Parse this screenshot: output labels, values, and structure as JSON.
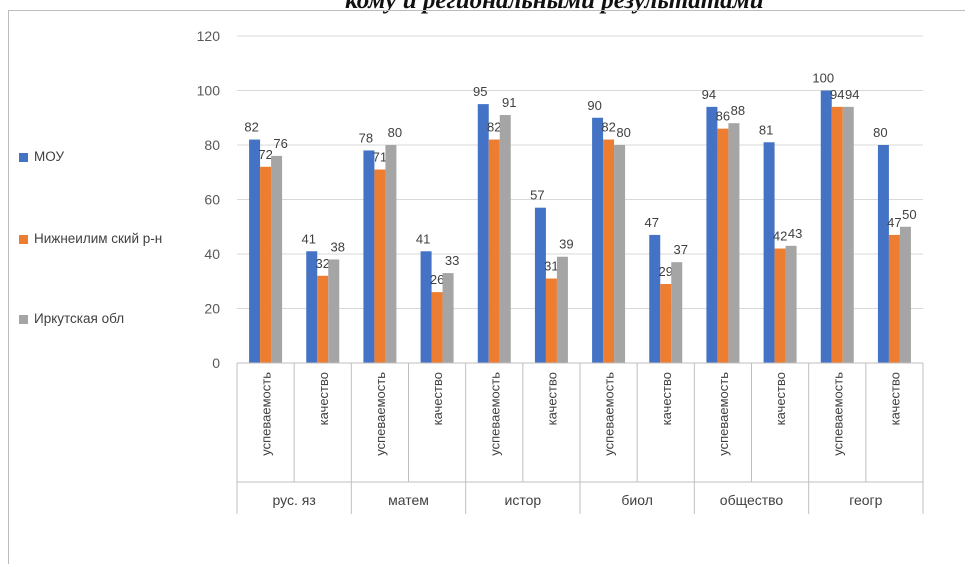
{
  "page": {
    "header_text": "кому и региональными результатами"
  },
  "chart_data": {
    "type": "bar",
    "title": "",
    "xlabel": "",
    "ylabel": "",
    "ylim": [
      0,
      120
    ],
    "yticks": [
      0,
      20,
      40,
      60,
      80,
      100,
      120
    ],
    "grid": "horizontal",
    "legend_position": "left",
    "groups": [
      {
        "label": "рус. яз",
        "categories": [
          "успеваемость",
          "качество"
        ]
      },
      {
        "label": "матем",
        "categories": [
          "успеваемость",
          "качество"
        ]
      },
      {
        "label": "истор",
        "categories": [
          "успеваемость",
          "качество"
        ]
      },
      {
        "label": "биол",
        "categories": [
          "успеваемость",
          "качество"
        ]
      },
      {
        "label": "общество",
        "categories": [
          "успеваемость",
          "качество"
        ]
      },
      {
        "label": "геогр",
        "categories": [
          "успеваемость",
          "качество"
        ]
      }
    ],
    "series": [
      {
        "name": "МОУ",
        "color": "#4472c4",
        "values": [
          82,
          41,
          78,
          41,
          95,
          57,
          90,
          47,
          94,
          81,
          100,
          80
        ]
      },
      {
        "name": "Нижнеилимский р-н",
        "color": "#ed7d31",
        "values": [
          72,
          32,
          71,
          26,
          82,
          31,
          82,
          29,
          86,
          42,
          94,
          47
        ]
      },
      {
        "name": "Иркутская обл",
        "color": "#a5a5a5",
        "values": [
          76,
          38,
          80,
          33,
          91,
          39,
          80,
          37,
          88,
          43,
          94,
          50
        ]
      }
    ],
    "legend": [
      {
        "label": "МОУ",
        "color": "#4472c4"
      },
      {
        "label": "Нижнеилим ский р-н",
        "color": "#ed7d31"
      },
      {
        "label": "Иркутская обл",
        "color": "#a5a5a5"
      }
    ]
  }
}
